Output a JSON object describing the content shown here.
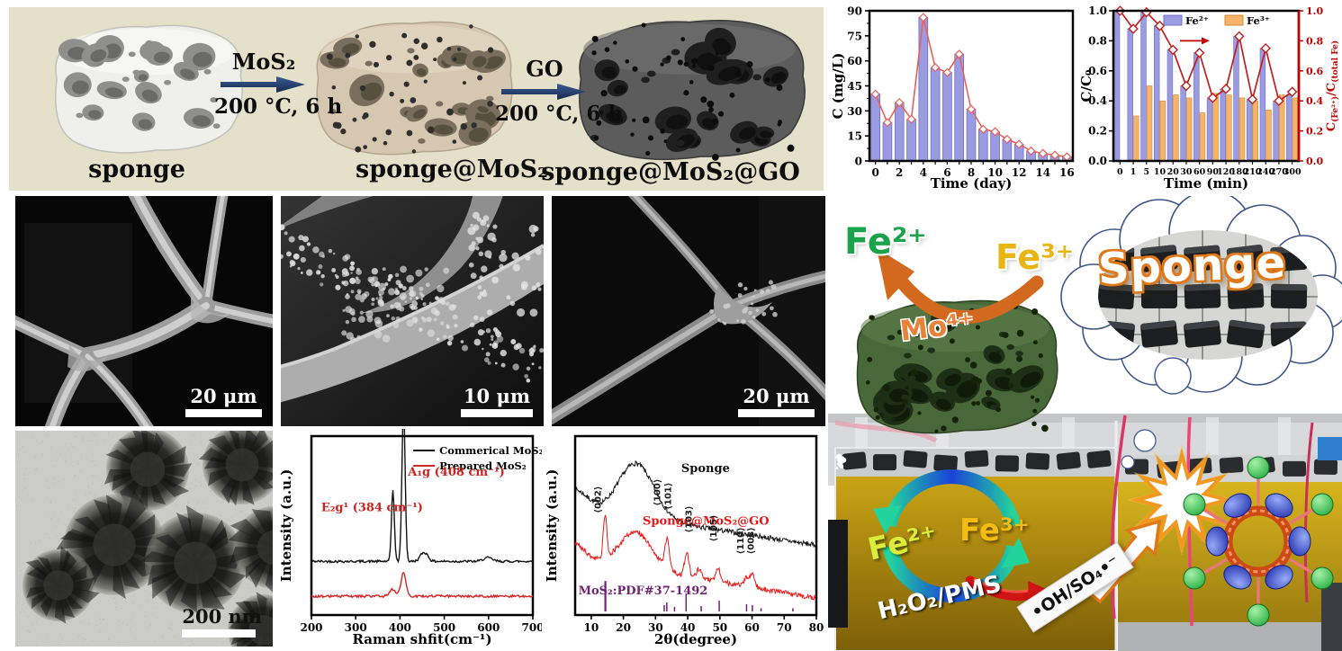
{
  "figure": {
    "panels": {
      "synthesis": {
        "bg_color": "#e5e0ca",
        "arrow_color": "#203864",
        "steps": [
          {
            "label": "sponge"
          },
          {
            "label": "sponge@MoS₂"
          },
          {
            "label": "sponge@MoS₂@GO"
          }
        ],
        "arrows": [
          {
            "reagent": "MoS₂",
            "conditions": "200 °C, 6 h"
          },
          {
            "reagent": "GO",
            "conditions": "200 °C, 6 h"
          }
        ]
      },
      "microscopy": {
        "sem1_scale_bar": "20 μm",
        "sem2_scale_bar": "10 μm",
        "sem3_scale_bar": "20 μm",
        "tem_scale_bar": "200 nm"
      },
      "mechanism": {
        "fe2_release": "Fe²⁺",
        "fe3_uptake": "Fe³⁺",
        "mo_site": "Mo⁴⁺",
        "cloud_label": "Sponge",
        "cycle_fe2": "Fe²⁺",
        "cycle_fe3": "Fe³⁺",
        "oxidant": "H₂O₂/PMS",
        "radicals": "•OH/SO₄•⁻",
        "colors": {
          "fe2": "#1aa34a",
          "fe3": "#e9b511",
          "mo": "#e8823a",
          "release_arrow": "#d2691e"
        }
      }
    }
  },
  "chart_data": [
    {
      "id": "concentration_time",
      "type": "bar",
      "xlabel": "Time (day)",
      "ylabel": "C (mg/L)",
      "categories": [
        0,
        1,
        2,
        3,
        4,
        5,
        6,
        7,
        8,
        9,
        10,
        11,
        12,
        13,
        14,
        15,
        16
      ],
      "values": [
        40,
        23,
        35,
        25,
        86,
        56,
        53,
        64,
        31,
        19,
        17.5,
        13,
        10,
        6,
        4.5,
        3.5,
        2.5
      ],
      "line_overlay_values": [
        40,
        23,
        35,
        25,
        86,
        56,
        53,
        64,
        31,
        19,
        17.5,
        13,
        10,
        6,
        4.5,
        3.5,
        2.5
      ],
      "ylim": [
        0,
        90
      ],
      "yticks": [
        0,
        15,
        30,
        45,
        60,
        75,
        90
      ],
      "xtick_label_step": 2,
      "bar_color": "#9b9be2",
      "bar_edge": "#6f6fc4",
      "line_color": "#e8605c",
      "legend_position": "none",
      "grid": false
    },
    {
      "id": "fe_speciation_time",
      "type": "bar",
      "xlabel": "Time (min)",
      "ylabel_left": "C/C₀",
      "ylabel_right": "C(Fe²⁺)/C(total Fe)",
      "ylabel_right_parts": [
        {
          "t": "C"
        },
        {
          "t": "(Fe²⁺)",
          "sub": true
        },
        {
          "t": "/C"
        },
        {
          "t": "(total Fe)",
          "sub": true
        }
      ],
      "categories": [
        "0",
        "1",
        "5",
        "10",
        "20",
        "30",
        "60",
        "90",
        "120",
        "180",
        "210",
        "240",
        "270",
        "300"
      ],
      "series": [
        {
          "name": "Fe²⁺",
          "color": "#9b9be2",
          "edge": "#6f6fc4",
          "values": [
            1.0,
            0.88,
            0.99,
            0.9,
            0.74,
            0.5,
            0.72,
            0.42,
            0.48,
            0.83,
            0.41,
            0.75,
            0.4,
            0.44
          ]
        },
        {
          "name": "Fe³⁺",
          "color": "#f5b469",
          "edge": "#cf8a35",
          "values": [
            null,
            0.3,
            0.5,
            0.4,
            0.44,
            0.42,
            0.32,
            0.45,
            0.44,
            0.42,
            0.4,
            0.34,
            0.44,
            0.42
          ]
        }
      ],
      "line": {
        "name": "C(Fe²⁺)/C(total Fe)",
        "color": "#c01f1f",
        "values": [
          1.0,
          0.88,
          0.99,
          0.9,
          0.74,
          0.5,
          0.72,
          0.42,
          0.48,
          0.83,
          0.41,
          0.75,
          0.4,
          0.46
        ]
      },
      "ylim": [
        0,
        1.0
      ],
      "yticks": [
        0.0,
        0.2,
        0.4,
        0.6,
        0.8,
        1.0
      ],
      "legend_position": "top-inside",
      "right_axis_color": "#c00000",
      "grid": false
    },
    {
      "id": "raman",
      "type": "line",
      "xlabel": "Raman shfit(cm⁻¹)",
      "ylabel": "Intensity (a.u.)",
      "xlim": [
        200,
        700
      ],
      "xticks": [
        200,
        300,
        400,
        500,
        600,
        700
      ],
      "series": [
        {
          "name": "Commerical MoS₂",
          "color": "#111111",
          "baseline": 0.3,
          "peaks": [
            [
              384,
              0.4,
              3.2
            ],
            [
              408,
              0.87,
              3.6
            ],
            [
              452,
              0.045,
              7
            ],
            [
              462,
              0.02,
              5
            ],
            [
              598,
              0.02,
              10
            ]
          ]
        },
        {
          "name": "Prepared MoS₂",
          "color": "#d42424",
          "baseline": 0.105,
          "peaks": [
            [
              383,
              0.038,
              7
            ],
            [
              408,
              0.135,
              5.5
            ]
          ]
        }
      ],
      "annotations": [
        {
          "text": "E₂g¹ (384 cm⁻¹)",
          "color": "#cc2222",
          "x": 222,
          "y": 0.58
        },
        {
          "text": "A₁g (408 cm⁻¹)",
          "color": "#cc2222",
          "x": 418,
          "y": 0.78
        }
      ],
      "legend_position": "top-right-inside",
      "grid": false
    },
    {
      "id": "xrd",
      "type": "line",
      "xlabel": "2θ(degree)",
      "ylabel": "Intensity (a.u.)",
      "xlim": [
        5,
        80
      ],
      "xticks": [
        10,
        20,
        30,
        40,
        50,
        60,
        70,
        80
      ],
      "series": [
        {
          "name": "Sponge",
          "color": "#111111",
          "curve": {
            "base": 0.6,
            "slope": -0.0028,
            "edge": [
              5,
              0.1,
              4
            ],
            "hump": [
              24,
              0.3,
              5.5
            ],
            "peaks": []
          },
          "label_pos": [
            38,
            0.8
          ]
        },
        {
          "name": "Sponge@MoS₂@GO",
          "color": "#e81818",
          "curve": {
            "base": 0.32,
            "slope": -0.003,
            "edge": [
              5,
              0.08,
              3
            ],
            "hump": [
              24,
              0.2,
              5.0
            ],
            "peaks": [
              [
                14.3,
                0.24,
                0.55
              ],
              [
                33.6,
                0.16,
                0.7
              ],
              [
                39.7,
                0.13,
                0.7
              ],
              [
                43.5,
                0.05,
                0.8
              ],
              [
                49.5,
                0.07,
                0.8
              ],
              [
                58.3,
                0.055,
                0.7
              ],
              [
                60.2,
                0.075,
                0.7
              ]
            ]
          },
          "label_pos": [
            26,
            0.505
          ]
        }
      ],
      "peak_labels": [
        {
          "text": "⟨002⟩",
          "x": 13.0,
          "y": 0.57
        },
        {
          "text": "⟨100⟩",
          "x": 31.4,
          "y": 0.61
        },
        {
          "text": "⟨101⟩",
          "x": 34.8,
          "y": 0.59
        },
        {
          "text": "⟨103⟩",
          "x": 41.3,
          "y": 0.46
        },
        {
          "text": "⟨105⟩",
          "x": 49.0,
          "y": 0.41
        },
        {
          "text": "⟨110⟩",
          "x": 57.3,
          "y": 0.34
        },
        {
          "text": "⟨008⟩",
          "x": 60.6,
          "y": 0.34
        }
      ],
      "reference": {
        "name": "MoS₂:PDF#37-1492",
        "color": "#6e2470",
        "sticks": [
          [
            14.4,
            0.17
          ],
          [
            32.7,
            0.035
          ],
          [
            33.5,
            0.05
          ],
          [
            35.9,
            0.025
          ],
          [
            39.5,
            0.1
          ],
          [
            44.2,
            0.03
          ],
          [
            49.8,
            0.06
          ],
          [
            58.3,
            0.04
          ],
          [
            60.1,
            0.035
          ],
          [
            62.8,
            0.018
          ],
          [
            72.7,
            0.018
          ]
        ]
      },
      "grid": false
    }
  ]
}
